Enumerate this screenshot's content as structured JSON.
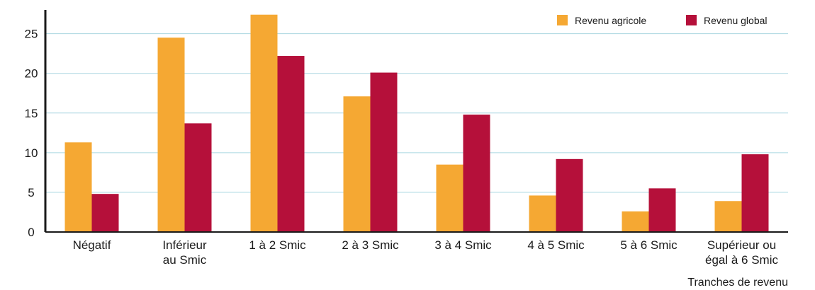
{
  "chart_data": {
    "type": "bar",
    "categories": [
      [
        "Négatif"
      ],
      [
        "Inférieur",
        "au Smic"
      ],
      [
        "1 à 2 Smic"
      ],
      [
        "2 à 3 Smic"
      ],
      [
        "3 à 4 Smic"
      ],
      [
        "4 à 5 Smic"
      ],
      [
        "5 à 6 Smic"
      ],
      [
        "Supérieur ou",
        "égal à 6 Smic"
      ]
    ],
    "series": [
      {
        "name": "Revenu agricole",
        "color": "#f5a833",
        "values": [
          11.3,
          24.5,
          27.4,
          17.1,
          8.5,
          4.6,
          2.6,
          3.9
        ]
      },
      {
        "name": "Revenu global",
        "color": "#b5103a",
        "values": [
          4.8,
          13.7,
          22.2,
          20.1,
          14.8,
          9.2,
          5.5,
          9.8
        ]
      }
    ],
    "xlabel": "Tranches de revenu",
    "ylabel": "",
    "ylim": [
      0,
      28
    ],
    "yticks": [
      0,
      5,
      10,
      15,
      20,
      25
    ],
    "grid": true,
    "legend_position": "top-right"
  }
}
